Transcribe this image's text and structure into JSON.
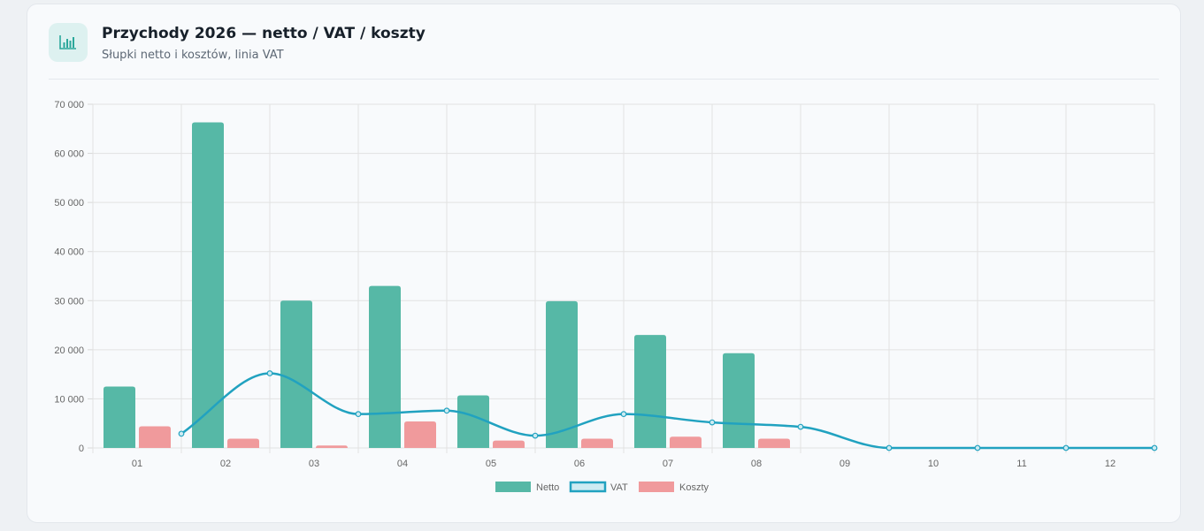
{
  "header": {
    "title": "Przychody 2026 — netto / VAT / koszty",
    "subtitle": "Słupki netto i kosztów, linia VAT",
    "icon": "bar-chart-icon"
  },
  "colors": {
    "netto": "#56b8a6",
    "vat_line": "#21a2c0",
    "vat_fill": "#cdebf2",
    "koszty": "#f09a9c",
    "icon": "#2aa79b"
  },
  "chart_data": {
    "type": "bar",
    "categories": [
      "01",
      "02",
      "03",
      "04",
      "05",
      "06",
      "07",
      "08",
      "09",
      "10",
      "11",
      "12"
    ],
    "series": [
      {
        "name": "Netto",
        "type": "bar",
        "values": [
          12500,
          66300,
          30000,
          33000,
          10700,
          29900,
          23000,
          19300,
          0,
          0,
          0,
          0
        ]
      },
      {
        "name": "VAT",
        "type": "line",
        "values": [
          2900,
          15200,
          6900,
          7600,
          2500,
          6900,
          5200,
          4300,
          0,
          0,
          0,
          0
        ]
      },
      {
        "name": "Koszty",
        "type": "bar",
        "values": [
          4400,
          1900,
          500,
          5400,
          1500,
          1900,
          2300,
          1900,
          0,
          0,
          0,
          0
        ]
      }
    ],
    "ylim": [
      0,
      70000
    ],
    "yticks": [
      0,
      10000,
      20000,
      30000,
      40000,
      50000,
      60000,
      70000
    ],
    "ytick_labels": [
      "0",
      "10 000",
      "20 000",
      "30 000",
      "40 000",
      "50 000",
      "60 000",
      "70 000"
    ],
    "grid": true,
    "legend": "bottom"
  }
}
